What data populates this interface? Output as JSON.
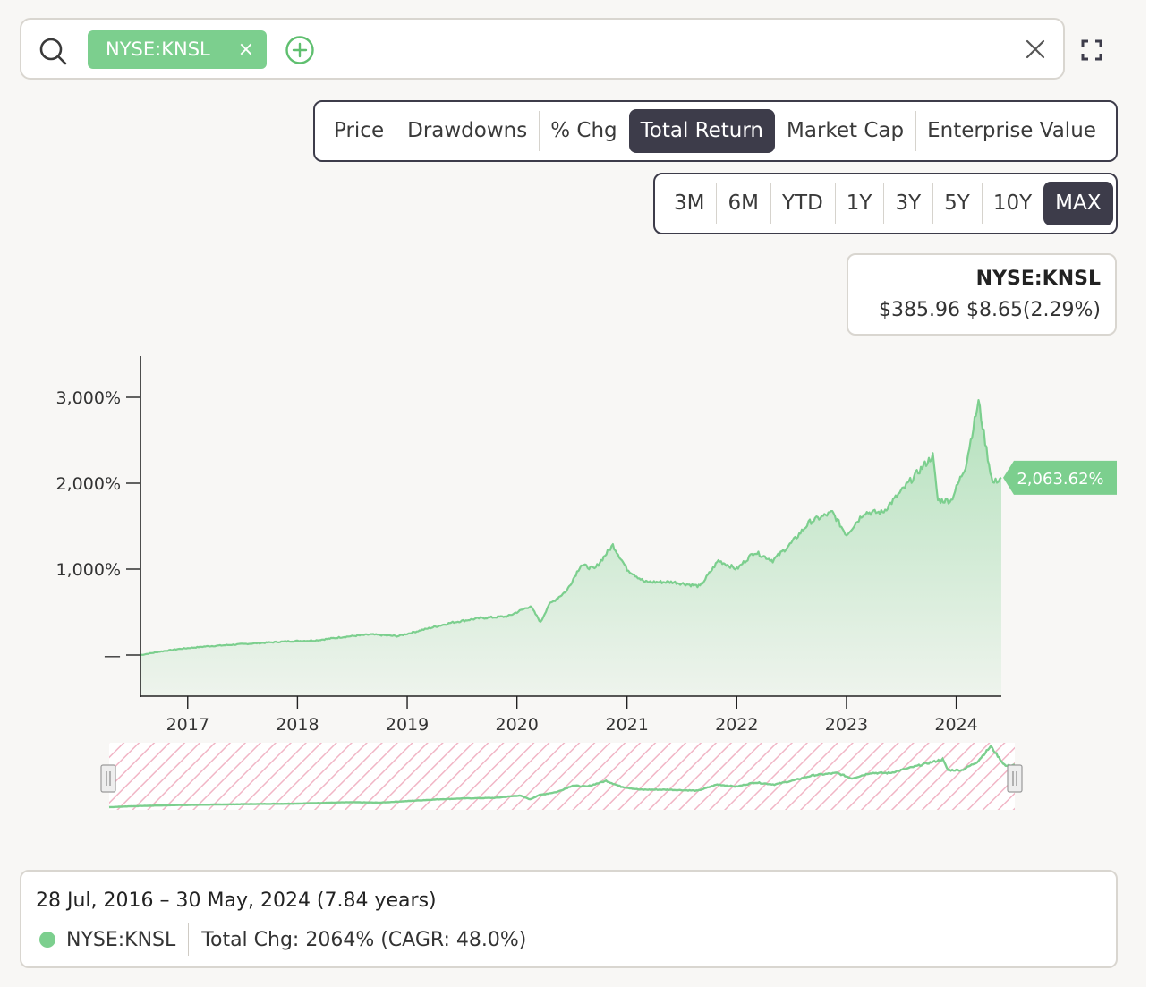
{
  "search": {
    "ticker_chip": "NYSE:KNSL",
    "chip_remove": "×"
  },
  "metrics_tabs": [
    "Price",
    "Drawdowns",
    "% Chg",
    "Total Return",
    "Market Cap",
    "Enterprise Value"
  ],
  "metrics_active": "Total Return",
  "range_tabs": [
    "3M",
    "6M",
    "YTD",
    "1Y",
    "3Y",
    "5Y",
    "10Y",
    "MAX"
  ],
  "range_active": "MAX",
  "quote": {
    "symbol": "NYSE:KNSL",
    "line": "$385.96 $8.65(2.29%)"
  },
  "colors": {
    "series": "#7ccf8e",
    "dark": "#3d3c4a",
    "navigator_hatch": "#f1b6c6"
  },
  "chart_data": {
    "type": "area",
    "title": "",
    "xlabel": "",
    "ylabel": "",
    "ylim": [
      -500,
      3500
    ],
    "y_ticks": [
      {
        "value": 0,
        "label": "—"
      },
      {
        "value": 1000,
        "label": "1,000%"
      },
      {
        "value": 2000,
        "label": "2,000%"
      },
      {
        "value": 3000,
        "label": "3,000%"
      }
    ],
    "x_range": [
      "2016-07-28",
      "2024-05-30"
    ],
    "x_ticks": [
      "2017",
      "2018",
      "2019",
      "2020",
      "2021",
      "2022",
      "2023",
      "2024"
    ],
    "series": [
      {
        "name": "NYSE:KNSL",
        "last_label": "2,063.62%",
        "points": [
          [
            "2016-07-28",
            0
          ],
          [
            "2016-10-01",
            40
          ],
          [
            "2016-12-01",
            70
          ],
          [
            "2017-03-01",
            100
          ],
          [
            "2017-06-01",
            120
          ],
          [
            "2017-09-01",
            140
          ],
          [
            "2017-12-01",
            160
          ],
          [
            "2018-03-01",
            170
          ],
          [
            "2018-06-01",
            210
          ],
          [
            "2018-09-01",
            240
          ],
          [
            "2018-12-01",
            220
          ],
          [
            "2019-03-01",
            300
          ],
          [
            "2019-06-01",
            380
          ],
          [
            "2019-09-01",
            430
          ],
          [
            "2019-12-01",
            450
          ],
          [
            "2020-02-15",
            570
          ],
          [
            "2020-03-20",
            380
          ],
          [
            "2020-04-15",
            580
          ],
          [
            "2020-06-15",
            750
          ],
          [
            "2020-08-01",
            1050
          ],
          [
            "2020-09-15",
            1000
          ],
          [
            "2020-11-15",
            1280
          ],
          [
            "2021-01-01",
            1000
          ],
          [
            "2021-03-01",
            850
          ],
          [
            "2021-06-01",
            850
          ],
          [
            "2021-09-01",
            800
          ],
          [
            "2021-11-01",
            1100
          ],
          [
            "2022-01-01",
            1000
          ],
          [
            "2022-03-01",
            1200
          ],
          [
            "2022-05-01",
            1100
          ],
          [
            "2022-07-01",
            1300
          ],
          [
            "2022-09-01",
            1550
          ],
          [
            "2022-11-15",
            1660
          ],
          [
            "2023-01-01",
            1400
          ],
          [
            "2023-03-01",
            1660
          ],
          [
            "2023-05-01",
            1660
          ],
          [
            "2023-07-01",
            1900
          ],
          [
            "2023-09-01",
            2150
          ],
          [
            "2023-10-15",
            2320
          ],
          [
            "2023-11-01",
            1800
          ],
          [
            "2023-12-15",
            1800
          ],
          [
            "2024-02-01",
            2200
          ],
          [
            "2024-03-15",
            2950
          ],
          [
            "2024-04-15",
            2300
          ],
          [
            "2024-05-01",
            2000
          ],
          [
            "2024-05-30",
            2063.62
          ]
        ]
      }
    ]
  },
  "summary": {
    "date_range": "28 Jul, 2016 – 30 May, 2024 (7.84 years)",
    "ticker": "NYSE:KNSL",
    "change": "Total Chg: 2064% (CAGR: 48.0%)"
  }
}
